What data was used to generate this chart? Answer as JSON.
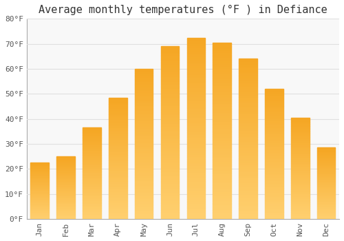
{
  "title": "Average monthly temperatures (°F ) in Defiance",
  "months": [
    "Jan",
    "Feb",
    "Mar",
    "Apr",
    "May",
    "Jun",
    "Jul",
    "Aug",
    "Sep",
    "Oct",
    "Nov",
    "Dec"
  ],
  "values": [
    22.5,
    25.0,
    36.5,
    48.5,
    60.0,
    69.0,
    72.5,
    70.5,
    64.0,
    52.0,
    40.5,
    28.5
  ],
  "bar_color_top": "#F5A623",
  "bar_color_bottom": "#FFD070",
  "background_color": "#FFFFFF",
  "plot_bg_color": "#F8F8F8",
  "grid_color": "#E0E0E0",
  "ylim": [
    0,
    80
  ],
  "yticks": [
    0,
    10,
    20,
    30,
    40,
    50,
    60,
    70,
    80
  ],
  "title_fontsize": 11,
  "tick_fontsize": 8,
  "bar_width": 0.7
}
